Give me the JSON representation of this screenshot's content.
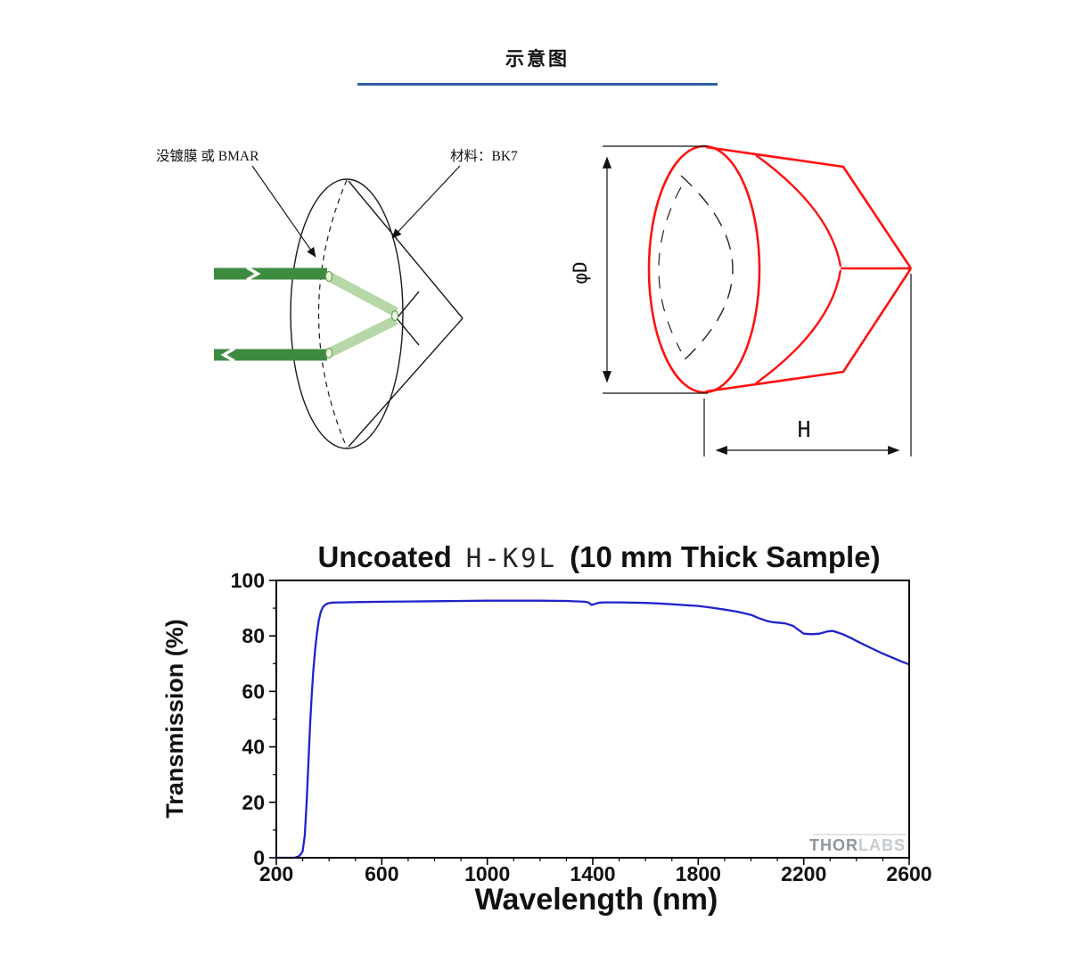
{
  "page": {
    "title": "示意图"
  },
  "left_diagram": {
    "coating_label": "没镀膜 或 BMAR",
    "material_label": "材料：BK7"
  },
  "right_diagram": {
    "diameter_label": "φD",
    "height_label": "H"
  },
  "chart": {
    "title_uncoated": "Uncoated",
    "title_material": "H-K9L",
    "title_sample": "(10 mm Thick Sample)",
    "watermark_thor": "THOR",
    "watermark_labs": "LABS"
  },
  "colors": {
    "accent_blue": "#2e5fa3",
    "curve_blue": "#2222cc",
    "diagram_red": "#ff1111",
    "ray_dark_green": "#3d8b40",
    "ray_light_green": "#b6d7a8"
  },
  "chart_data": {
    "type": "line",
    "title": "Uncoated H-K9L (10 mm Thick Sample)",
    "xlabel": "Wavelength (nm)",
    "ylabel": "Transmission (%)",
    "xlim": [
      200,
      2600
    ],
    "ylim": [
      0,
      100
    ],
    "x_ticks": [
      200,
      600,
      1000,
      1400,
      1800,
      2200,
      2600
    ],
    "y_ticks": [
      0,
      20,
      40,
      60,
      80,
      100
    ],
    "x_minor_step": 100,
    "y_minor_step": 10,
    "grid": false,
    "legend": "none",
    "series": [
      {
        "name": "Uncoated H-K9L 10 mm thick sample transmission",
        "color": "#2222cc",
        "points": [
          [
            200,
            0
          ],
          [
            270,
            0
          ],
          [
            285,
            0.5
          ],
          [
            295,
            1.5
          ],
          [
            300,
            2.5
          ],
          [
            308,
            8
          ],
          [
            315,
            20
          ],
          [
            322,
            35
          ],
          [
            328,
            48
          ],
          [
            334,
            58
          ],
          [
            340,
            67
          ],
          [
            347,
            75
          ],
          [
            354,
            81
          ],
          [
            361,
            85.5
          ],
          [
            368,
            88.5
          ],
          [
            376,
            90.3
          ],
          [
            385,
            91.2
          ],
          [
            395,
            91.7
          ],
          [
            410,
            92
          ],
          [
            450,
            92.1
          ],
          [
            500,
            92.2
          ],
          [
            600,
            92.3
          ],
          [
            700,
            92.4
          ],
          [
            800,
            92.5
          ],
          [
            900,
            92.6
          ],
          [
            1000,
            92.7
          ],
          [
            1100,
            92.7
          ],
          [
            1200,
            92.7
          ],
          [
            1300,
            92.6
          ],
          [
            1370,
            92.3
          ],
          [
            1385,
            92
          ],
          [
            1395,
            91.2
          ],
          [
            1405,
            91.4
          ],
          [
            1420,
            91.9
          ],
          [
            1440,
            92.1
          ],
          [
            1500,
            92.1
          ],
          [
            1550,
            92
          ],
          [
            1600,
            91.9
          ],
          [
            1650,
            91.7
          ],
          [
            1700,
            91.4
          ],
          [
            1750,
            91.1
          ],
          [
            1800,
            90.8
          ],
          [
            1850,
            90.2
          ],
          [
            1900,
            89.5
          ],
          [
            1950,
            88.7
          ],
          [
            2000,
            87.6
          ],
          [
            2030,
            86.4
          ],
          [
            2060,
            85.4
          ],
          [
            2080,
            85
          ],
          [
            2100,
            84.8
          ],
          [
            2130,
            84.5
          ],
          [
            2160,
            83.6
          ],
          [
            2180,
            82.2
          ],
          [
            2200,
            80.8
          ],
          [
            2230,
            80.6
          ],
          [
            2260,
            80.8
          ],
          [
            2290,
            81.6
          ],
          [
            2310,
            81.8
          ],
          [
            2330,
            81.2
          ],
          [
            2350,
            80.5
          ],
          [
            2380,
            79.2
          ],
          [
            2400,
            78.2
          ],
          [
            2430,
            76.8
          ],
          [
            2460,
            75.4
          ],
          [
            2500,
            73.6
          ],
          [
            2540,
            72
          ],
          [
            2570,
            70.8
          ],
          [
            2600,
            69.7
          ]
        ]
      }
    ]
  }
}
